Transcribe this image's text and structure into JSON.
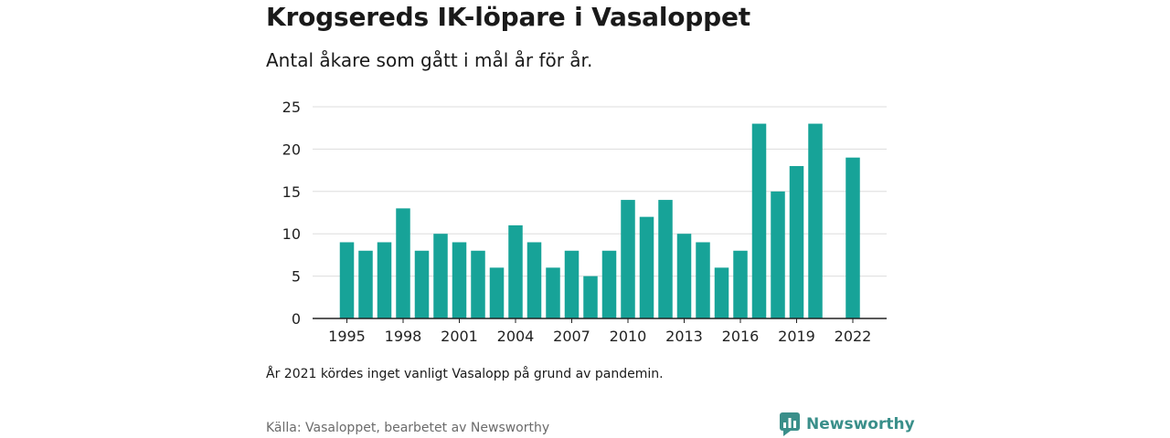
{
  "header": {
    "title": "Krogsereds IK-löpare i Vasaloppet",
    "subtitle": "Antal åkare som gått i mål år för år."
  },
  "footer": {
    "note": "År 2021 kördes inget vanligt Vasalopp på grund av pandemin.",
    "source": "Källa: Vasaloppet, bearbetet av Newsworthy",
    "brand": "Newsworthy"
  },
  "colors": {
    "bar": "#17a398",
    "brand": "#3a8f8a",
    "grid": "#dddddd",
    "axis": "#222222"
  },
  "icons": {
    "brand_logo": "newsworthy-logo-icon"
  },
  "chart_data": {
    "type": "bar",
    "title": "Krogsereds IK-löpare i Vasaloppet",
    "subtitle": "Antal åkare som gått i mål år för år.",
    "x": [
      1995,
      1996,
      1997,
      1998,
      1999,
      2000,
      2001,
      2002,
      2003,
      2004,
      2005,
      2006,
      2007,
      2008,
      2009,
      2010,
      2011,
      2012,
      2013,
      2014,
      2015,
      2016,
      2017,
      2018,
      2019,
      2020,
      2021,
      2022
    ],
    "values": [
      9,
      8,
      9,
      13,
      8,
      10,
      9,
      8,
      6,
      11,
      9,
      6,
      8,
      5,
      8,
      14,
      12,
      14,
      10,
      9,
      6,
      8,
      23,
      15,
      18,
      23,
      null,
      19
    ],
    "xticks": [
      "1995",
      "1998",
      "2001",
      "2004",
      "2007",
      "2010",
      "2013",
      "2016",
      "2019",
      "2022"
    ],
    "yticks": [
      "0",
      "5",
      "10",
      "15",
      "20",
      "25"
    ],
    "ylim": [
      0,
      25
    ],
    "grid": true
  }
}
